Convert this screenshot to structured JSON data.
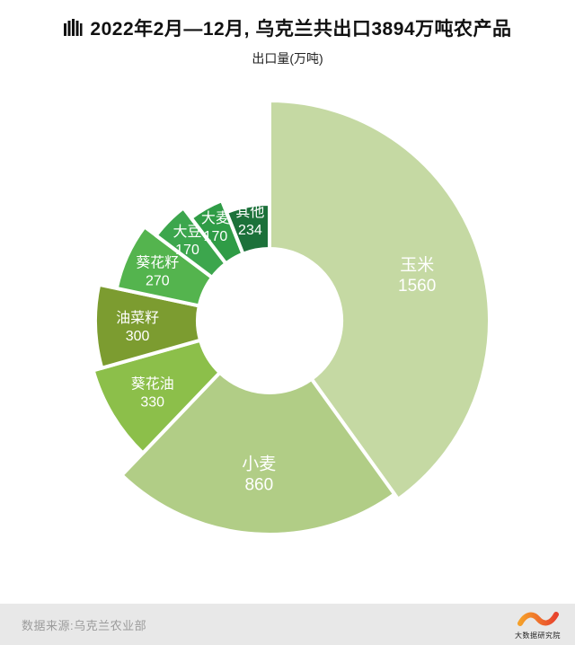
{
  "header": {
    "title": "2022年2月—12月, 乌克兰共出口3894万吨农产品",
    "subtitle": "出口量(万吨)"
  },
  "footer": {
    "source": "数据来源:乌克兰农业部",
    "logo_text": "大数据研究院"
  },
  "chart_data": {
    "type": "pie",
    "title": "2022年2月—12月, 乌克兰共出口3894万吨农产品",
    "subtitle": "出口量(万吨)",
    "unit": "万吨",
    "total": 3894,
    "categories": [
      "玉米",
      "小麦",
      "葵花油",
      "油菜籽",
      "葵花籽",
      "大豆",
      "大麦",
      "其他"
    ],
    "values": [
      1560,
      860,
      330,
      300,
      270,
      170,
      170,
      234
    ],
    "colors": [
      "#c5d9a3",
      "#b1cd86",
      "#8cbf4a",
      "#7c9c30",
      "#54b44e",
      "#3ca64d",
      "#2f9c46",
      "#1c713a"
    ],
    "legend": "none",
    "donut": true,
    "start_angle_deg": 0,
    "clockwise": true,
    "inner_radius": 80,
    "outer_radii": [
      245,
      238,
      204,
      194,
      174,
      158,
      144,
      130
    ],
    "label_color": "#ffffff"
  },
  "accent_colors": {
    "logo_gradient_start": "#e8432d",
    "logo_gradient_end": "#f5a02a",
    "footer_bg": "#e8e8e8"
  }
}
